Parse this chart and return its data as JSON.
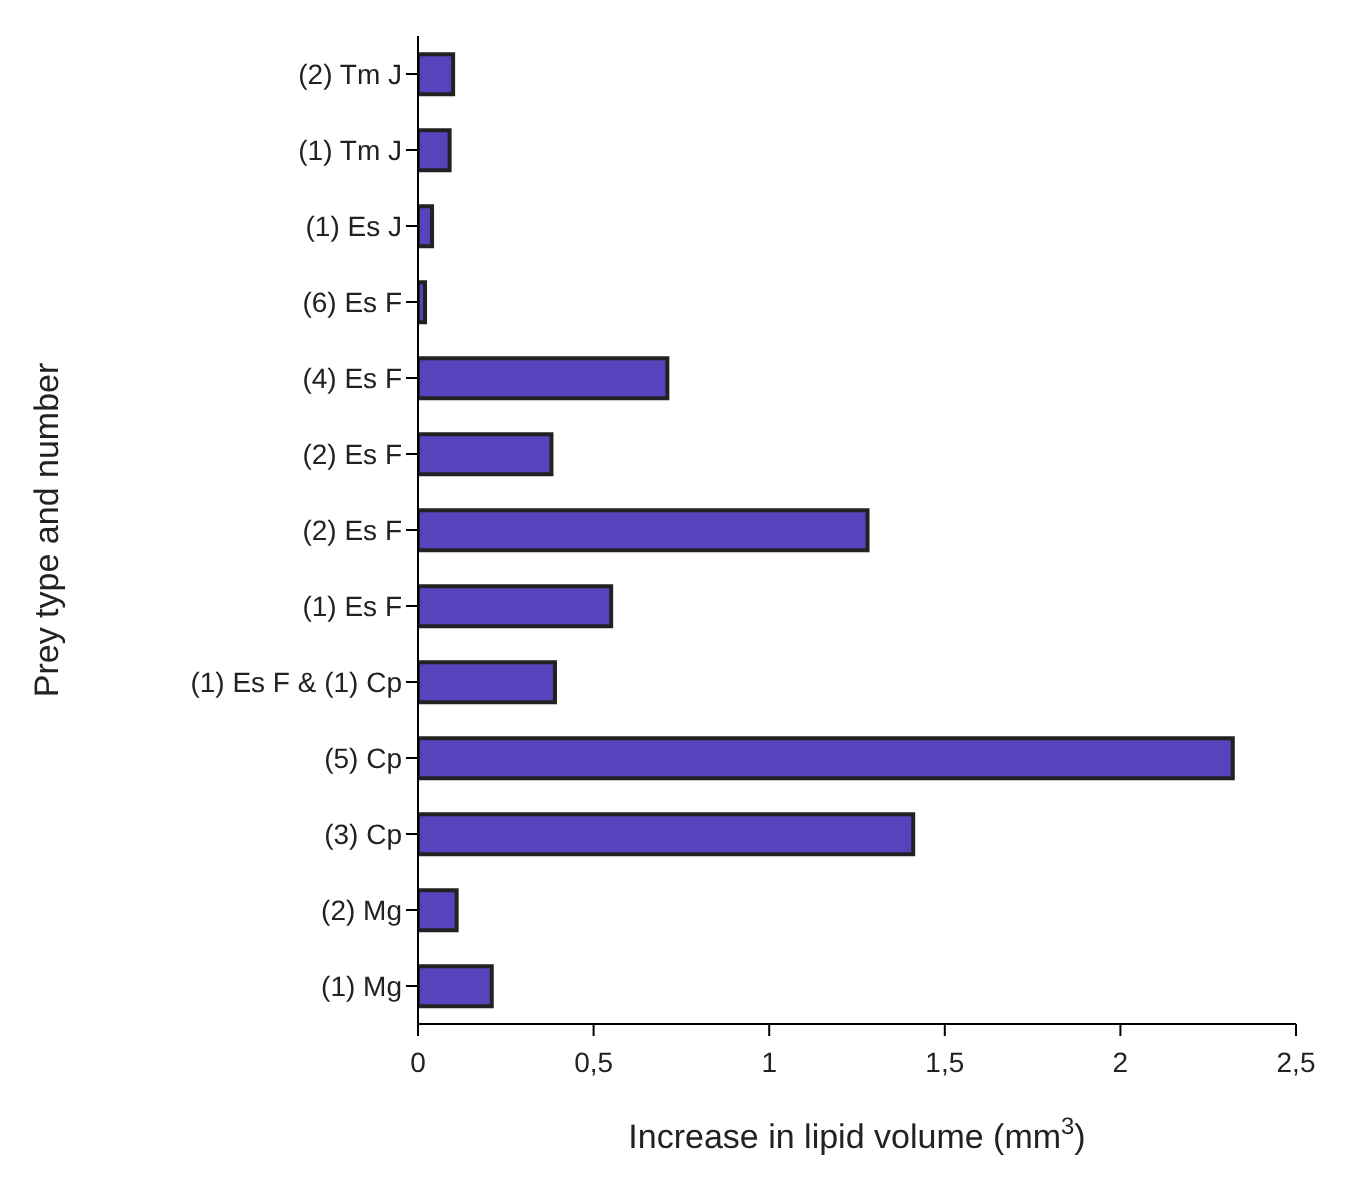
{
  "chart_data": {
    "type": "bar",
    "orientation": "horizontal",
    "xlabel": "Increase in lipid volume (mm$^{3}$)",
    "ylabel": "Prey type and number",
    "categories": [
      "(2) Tm J",
      "(1) Tm J",
      "(1) Es J",
      "(6) Es F",
      "(4) Es F",
      "(2) Es F",
      "(2) Es F",
      "(1) Es F",
      "(1) Es F & (1) Cp",
      "(5) Cp",
      "(3) Cp",
      "(2) Mg",
      "(1)  Mg"
    ],
    "values": [
      0.1,
      0.09,
      0.04,
      0.02,
      0.71,
      0.38,
      1.28,
      0.55,
      0.39,
      2.32,
      1.41,
      0.11,
      0.21
    ],
    "color": "#5544bb",
    "xlim": [
      0,
      2.5
    ],
    "xticks": [
      0,
      {
        "value": 0.5,
        "label": "0,5"
      },
      1,
      {
        "value": 1.5,
        "label": "1,5"
      },
      2,
      {
        "value": 2.5,
        "label": "2,5"
      }
    ],
    "grid": false
  }
}
